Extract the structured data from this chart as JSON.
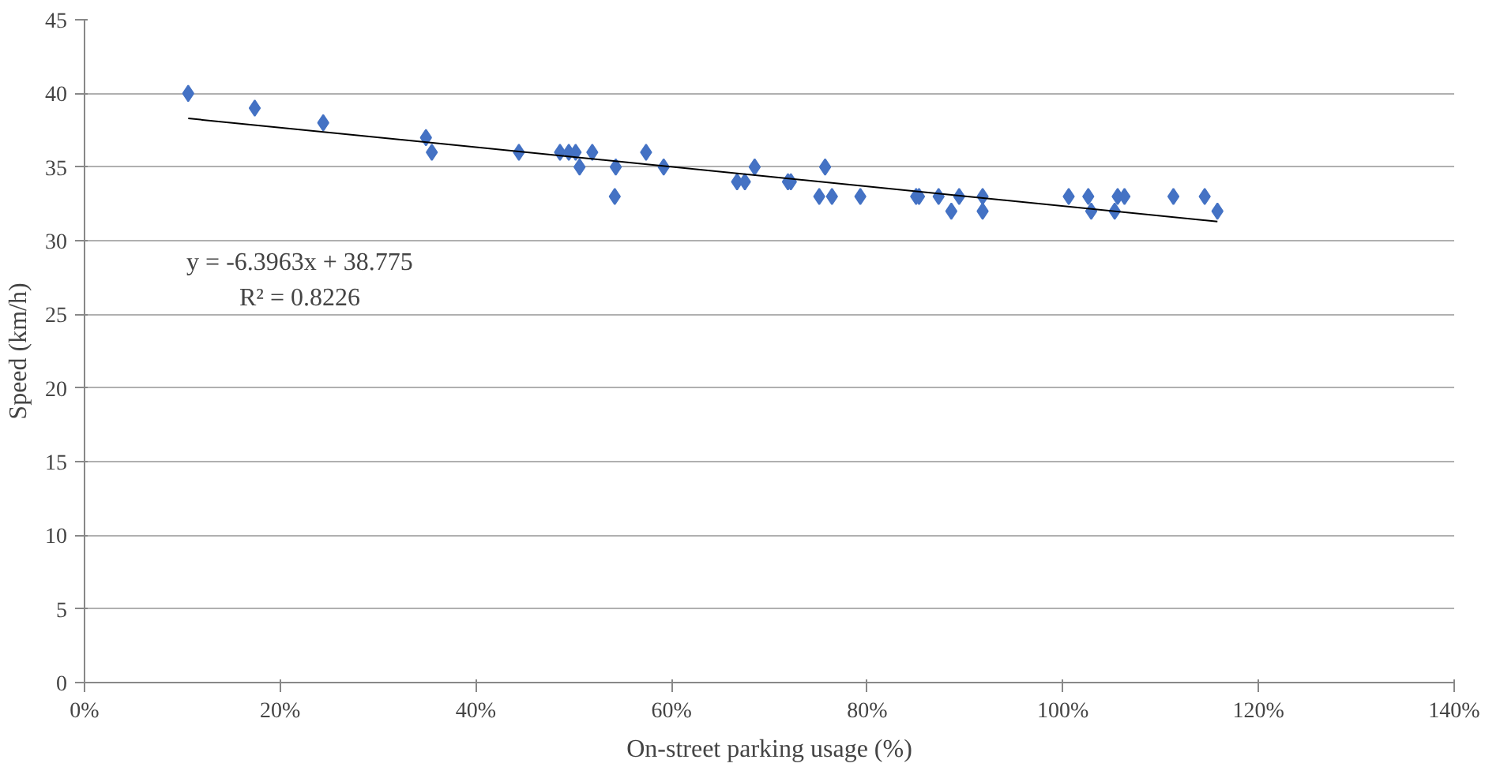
{
  "chart_data": {
    "type": "scatter",
    "xlabel": "On-street parking usage (%)",
    "ylabel": "Speed (km/h)",
    "xlim": [
      0,
      140
    ],
    "xticks": [
      {
        "value": 0,
        "label": "0%"
      },
      {
        "value": 20,
        "label": "20%"
      },
      {
        "value": 40,
        "label": "40%"
      },
      {
        "value": 60,
        "label": "60%"
      },
      {
        "value": 80,
        "label": "80%"
      },
      {
        "value": 100,
        "label": "100%"
      },
      {
        "value": 120,
        "label": "120%"
      },
      {
        "value": 140,
        "label": "140%"
      }
    ],
    "ylim": [
      0,
      45
    ],
    "yticks": [
      0,
      5,
      10,
      15,
      20,
      25,
      30,
      35,
      40,
      45
    ],
    "grid": "y",
    "series": [
      {
        "marker": "diamond",
        "color": "#4472c4",
        "x": [
          10.6,
          17.4,
          24.4,
          34.9,
          35.5,
          44.4,
          48.6,
          49.5,
          50.2,
          50.6,
          51.9,
          54.3,
          54.2,
          57.4,
          59.2,
          66.7,
          67.5,
          68.5,
          71.9,
          72.2,
          75.1,
          75.7,
          76.4,
          79.3,
          85.0,
          85.3,
          87.3,
          88.6,
          89.4,
          91.8,
          91.8,
          100.6,
          102.6,
          102.9,
          105.3,
          105.6,
          106.3,
          111.3,
          114.5,
          115.8
        ],
        "values": [
          40,
          39,
          38,
          37,
          36,
          36,
          36,
          36,
          36,
          35,
          36,
          35,
          33,
          36,
          35,
          34,
          34,
          35,
          34,
          34,
          33,
          35,
          33,
          33,
          33,
          33,
          33,
          32,
          33,
          33,
          32,
          33,
          33,
          32,
          32,
          33,
          33,
          33,
          33,
          32
        ]
      },
      {
        "type": "line",
        "color": "#000000",
        "x": [
          10.6,
          115.8
        ],
        "values": [
          38.3,
          31.3
        ]
      }
    ],
    "annotations": [
      "y = -6.3963x + 38.775",
      "R² = 0.8226"
    ]
  }
}
